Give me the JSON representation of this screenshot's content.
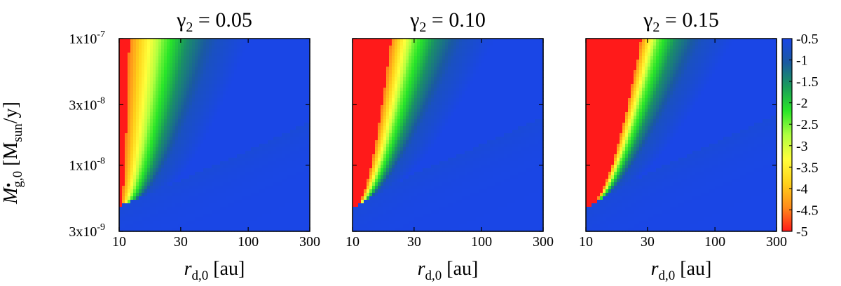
{
  "chart_data": {
    "type": "heatmap",
    "x_scale": "log",
    "y_scale": "log",
    "xlabel": "r",
    "xlabel_sub": "d,0",
    "xlabel_unit": " [au]",
    "ylabel": "M",
    "ylabel_sub": "g,0",
    "ylabel_unit_open": " [M",
    "ylabel_unit_sub": "sun",
    "ylabel_unit_close": "/y]",
    "xlim": [
      10,
      300
    ],
    "ylim": [
      3e-09,
      1e-07
    ],
    "x_ticks": [
      {
        "value": 10,
        "label": "10"
      },
      {
        "value": 30,
        "label": "30"
      },
      {
        "value": 100,
        "label": "100"
      },
      {
        "value": 300,
        "label": "300"
      }
    ],
    "y_ticks": [
      {
        "value": 1e-07,
        "label_base": "1x10",
        "label_exp": "-7"
      },
      {
        "value": 3e-08,
        "label_base": "3x10",
        "label_exp": "-8"
      },
      {
        "value": 1e-08,
        "label_base": "1x10",
        "label_exp": "-8"
      },
      {
        "value": 3e-09,
        "label_base": "3x10",
        "label_exp": "-9"
      }
    ],
    "colorbar": {
      "range": [
        -5,
        -0.5
      ],
      "ticks": [
        -0.5,
        -1,
        -1.5,
        -2,
        -2.5,
        -3,
        -3.5,
        -4,
        -4.5,
        -5
      ],
      "tick_labels": [
        "-0.5",
        "-1",
        "-1.5",
        "-2",
        "-2.5",
        "-3",
        "-3.5",
        "-4",
        "-4.5",
        "-5"
      ],
      "colors": [
        "#ff1a1a",
        "#ff8c1a",
        "#ffd21a",
        "#ffff3c",
        "#b0ff40",
        "#28e628",
        "#1a9c5a",
        "#1a5aa0",
        "#1a46e6"
      ]
    },
    "panels": [
      {
        "title_symbol": "γ",
        "title_sub": "2",
        "title_value": " = 0.05",
        "boundary": [
          [
            10,
            4.7e-09
          ],
          [
            30,
            7.6e-09
          ],
          [
            100,
            1.3e-08
          ],
          [
            300,
            2.2e-08
          ]
        ],
        "color_band_edges": [
          {
            "value": -4.5,
            "r_at_top": 12,
            "r_at_boundary": 10.3
          },
          {
            "value": -2.5,
            "r_at_top": 22,
            "r_at_boundary": 11.4
          },
          {
            "value": -1.5,
            "r_at_top": 34,
            "r_at_boundary": 12.6
          },
          {
            "value": -0.8,
            "r_at_top": 58,
            "r_at_boundary": 13.8
          }
        ]
      },
      {
        "title_symbol": "γ",
        "title_sub": "2",
        "title_value": " = 0.10",
        "boundary": [
          [
            10,
            4.6e-09
          ],
          [
            30,
            8.5e-09
          ],
          [
            100,
            1.45e-08
          ],
          [
            300,
            2.4e-08
          ]
        ],
        "color_band_edges": [
          {
            "value": -4.5,
            "r_at_top": 20,
            "r_at_boundary": 10.9
          },
          {
            "value": -2.5,
            "r_at_top": 30,
            "r_at_boundary": 11.6
          },
          {
            "value": -1.5,
            "r_at_top": 44,
            "r_at_boundary": 12.3
          },
          {
            "value": -0.8,
            "r_at_top": 72,
            "r_at_boundary": 13.0
          }
        ]
      },
      {
        "title_symbol": "γ",
        "title_sub": "2",
        "title_value": " = 0.15",
        "boundary": [
          [
            10,
            4.6e-09
          ],
          [
            30,
            8.6e-09
          ],
          [
            100,
            1.5e-08
          ],
          [
            300,
            2.5e-08
          ]
        ],
        "color_band_edges": [
          {
            "value": -4.5,
            "r_at_top": 27,
            "r_at_boundary": 11.4
          },
          {
            "value": -2.5,
            "r_at_top": 36,
            "r_at_boundary": 12.0
          },
          {
            "value": -1.5,
            "r_at_top": 50,
            "r_at_boundary": 12.6
          },
          {
            "value": -0.8,
            "r_at_top": 80,
            "r_at_boundary": 13.4
          }
        ]
      }
    ]
  }
}
